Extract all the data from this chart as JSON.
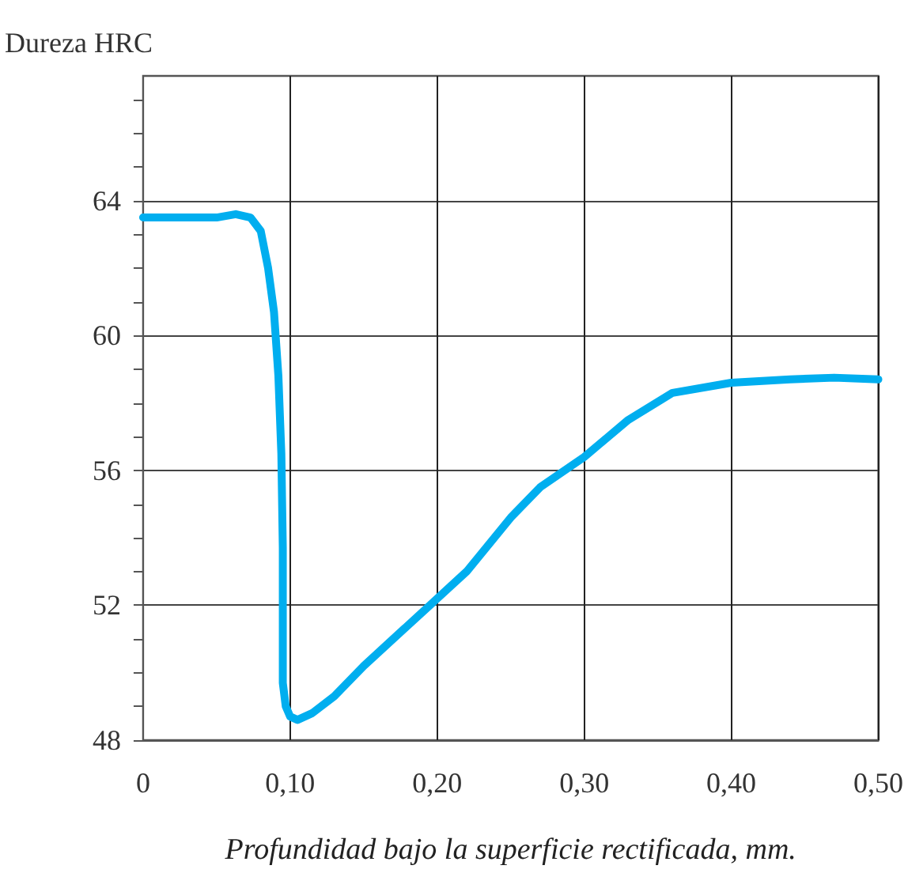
{
  "chart_data": {
    "type": "line",
    "xlabel": "Profundidad bajo la superficie rectificada, mm.",
    "ylabel": "Dureza HRC",
    "x": [
      0,
      0.05,
      0.063,
      0.073,
      0.08,
      0.085,
      0.089,
      0.092,
      0.094,
      0.095,
      0.095,
      0.097,
      0.1,
      0.105,
      0.115,
      0.13,
      0.15,
      0.175,
      0.195,
      0.22,
      0.25,
      0.27,
      0.3,
      0.33,
      0.36,
      0.4,
      0.44,
      0.47,
      0.5
    ],
    "series": [
      {
        "color": "#00aeef",
        "values": [
          63.5,
          63.5,
          63.6,
          63.5,
          63.1,
          62.0,
          60.7,
          58.8,
          56.5,
          53.7,
          49.7,
          49.0,
          48.7,
          48.6,
          48.8,
          49.3,
          50.2,
          51.2,
          52.0,
          53.0,
          54.6,
          55.5,
          56.4,
          57.5,
          58.3,
          58.6,
          58.7,
          58.75,
          58.7
        ]
      }
    ],
    "xlim": [
      0,
      0.5
    ],
    "xticks": [
      0,
      {
        "value": 0.1,
        "label": "0,10"
      },
      {
        "value": 0.2,
        "label": "0,20"
      },
      {
        "value": 0.3,
        "label": "0,30"
      },
      {
        "value": 0.4,
        "label": "0,40"
      },
      {
        "value": 0.5,
        "label": "0,50"
      }
    ],
    "ylim": [
      48,
      67.7
    ],
    "yticks": [
      48,
      {
        "value": 49,
        "label": null
      },
      {
        "value": 50,
        "label": null
      },
      {
        "value": 51,
        "label": null
      },
      52,
      {
        "value": 53,
        "label": null
      },
      {
        "value": 54,
        "label": null
      },
      {
        "value": 55,
        "label": null
      },
      56,
      {
        "value": 57,
        "label": null
      },
      {
        "value": 58,
        "label": null
      },
      {
        "value": 59,
        "label": null
      },
      60,
      {
        "value": 61,
        "label": null
      },
      {
        "value": 62,
        "label": null
      },
      {
        "value": 63,
        "label": null
      },
      64,
      {
        "value": 65,
        "label": null
      },
      {
        "value": 66,
        "label": null
      },
      {
        "value": 67,
        "label": null
      }
    ],
    "grid": true,
    "marker": "none",
    "line_style": "solid"
  }
}
